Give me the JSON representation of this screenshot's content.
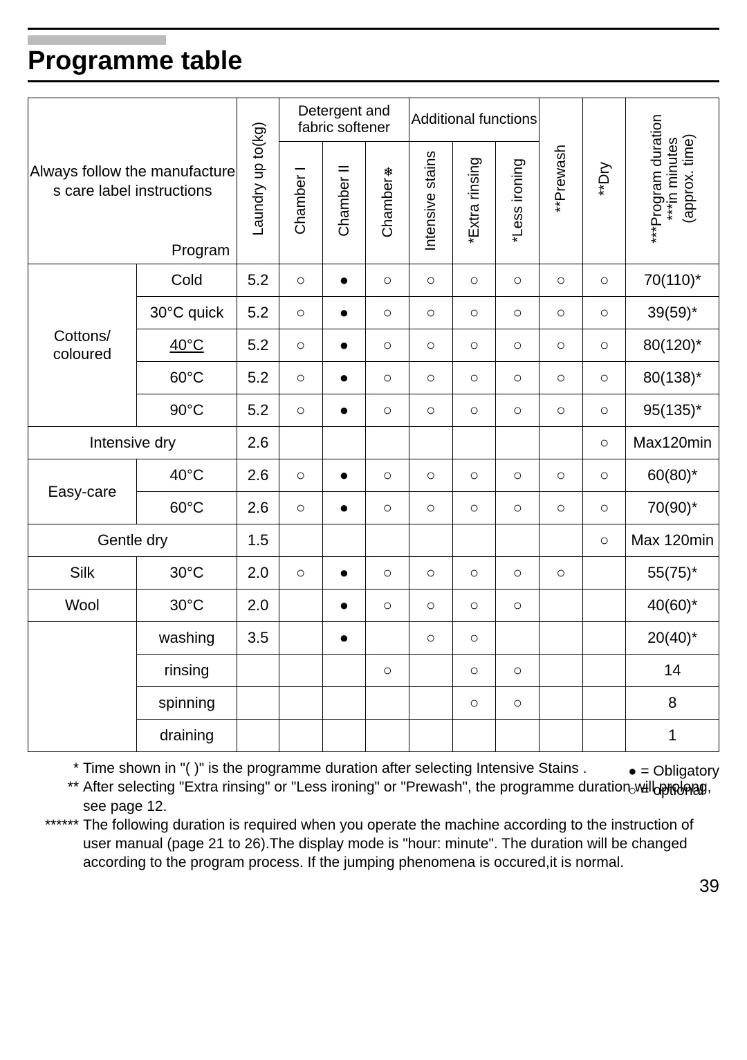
{
  "title": "Programme table",
  "header_paragraph": "Always follow the manufacture s care label instructions",
  "program_label": "Program",
  "group_headers": {
    "detergent": "Detergent and fabric softener",
    "additional": "Additional functions"
  },
  "v_headers": {
    "kg": "Laundry up to(kg)",
    "ch1": "Chamber I",
    "ch2": "Chamber II",
    "ch3_a": "Chamber",
    "stains": "Intensive stains",
    "extra": "Extra rinsing",
    "less": "Less ironing",
    "prewash": "Prewash",
    "dry": "Dry",
    "dur_a": "Program duration",
    "dur_b": "in minutes",
    "dur_c": "(approx. time)"
  },
  "star_1": "*",
  "star_2": "**",
  "star_3": "***",
  "groups": {
    "cottons": "Cottons/ coloured",
    "intensive_dry": "Intensive dry",
    "easy": "Easy-care",
    "gentle_dry": "Gentle dry",
    "silk": "Silk",
    "wool": "Wool"
  },
  "rows": {
    "r1": {
      "prog": "Cold",
      "kg": "5.2",
      "c1": "o",
      "c2": "f",
      "c3": "o",
      "c4": "o",
      "c5": "o",
      "c6": "o",
      "c7": "o",
      "c8": "o",
      "dur": "70(110)*"
    },
    "r2": {
      "prog": "30°C quick",
      "kg": "5.2",
      "c1": "o",
      "c2": "f",
      "c3": "o",
      "c4": "o",
      "c5": "o",
      "c6": "o",
      "c7": "o",
      "c8": "o",
      "dur": "39(59)*"
    },
    "r3": {
      "prog": "40°C",
      "kg": "5.2",
      "c1": "o",
      "c2": "f",
      "c3": "o",
      "c4": "o",
      "c5": "o",
      "c6": "o",
      "c7": "o",
      "c8": "o",
      "dur": "80(120)*"
    },
    "r4": {
      "prog": "60°C",
      "kg": "5.2",
      "c1": "o",
      "c2": "f",
      "c3": "o",
      "c4": "o",
      "c5": "o",
      "c6": "o",
      "c7": "o",
      "c8": "o",
      "dur": "80(138)*"
    },
    "r5": {
      "prog": "90°C",
      "kg": "5.2",
      "c1": "o",
      "c2": "f",
      "c3": "o",
      "c4": "o",
      "c5": "o",
      "c6": "o",
      "c7": "o",
      "c8": "o",
      "dur": "95(135)*"
    },
    "r6": {
      "kg": "2.6",
      "c8": "o",
      "dur": "Max120min"
    },
    "r7": {
      "prog": "40°C",
      "kg": "2.6",
      "c1": "o",
      "c2": "f",
      "c3": "o",
      "c4": "o",
      "c5": "o",
      "c6": "o",
      "c7": "o",
      "c8": "o",
      "dur": "60(80)*"
    },
    "r8": {
      "prog": "60°C",
      "kg": "2.6",
      "c1": "o",
      "c2": "f",
      "c3": "o",
      "c4": "o",
      "c5": "o",
      "c6": "o",
      "c7": "o",
      "c8": "o",
      "dur": "70(90)*"
    },
    "r9": {
      "kg": "1.5",
      "c8": "o",
      "dur": "Max 120min"
    },
    "r10": {
      "prog": "30°C",
      "kg": "2.0",
      "c1": "o",
      "c2": "f",
      "c3": "o",
      "c4": "o",
      "c5": "o",
      "c6": "o",
      "c7": "o",
      "dur": "55(75)*"
    },
    "r11": {
      "prog": "30°C",
      "kg": "2.0",
      "c2": "f",
      "c3": "o",
      "c4": "o",
      "c5": "o",
      "c6": "o",
      "dur": "40(60)*"
    },
    "r12": {
      "prog": "washing",
      "kg": "3.5",
      "c2": "f",
      "c4": "o",
      "c5": "o",
      "dur": "20(40)*"
    },
    "r13": {
      "prog": "rinsing",
      "c3": "o",
      "c5": "o",
      "c6": "o",
      "dur": "14"
    },
    "r14": {
      "prog": "spinning",
      "c5": "o",
      "c6": "o",
      "dur": "8"
    },
    "r15": {
      "prog": "draining",
      "dur": "1"
    }
  },
  "footnotes": {
    "f1_star": "*",
    "f1": "Time shown  in \"( )\" is the programme duration after selecting  Intensive Stains .",
    "f2_star": "**",
    "f2": "After selecting \"Extra rinsing\" or \"Less ironing\" or \"Prewash\", the programme duration will prolong, see page 12.",
    "f3_star": "******",
    "f3": "The following duration is required when you operate the machine according to the instruction of user manual (page 21 to 26).The display mode is \"hour: minute\". The duration will be changed according to the program process. If the jumping phenomena is occured,it is normal."
  },
  "legend": {
    "obl": "= Obligatory",
    "opt": "= optional"
  },
  "page_number": "39"
}
